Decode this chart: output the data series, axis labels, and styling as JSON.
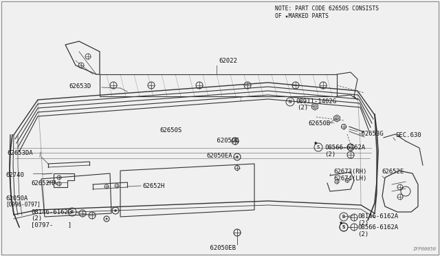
{
  "bg_color": "#f0f0f0",
  "line_color": "#333333",
  "text_color": "#111111",
  "note_line1": "NOTE: PART CODE 62650S CONSISTS",
  "note_line2": "OF ★MARKED PARTS",
  "watermark": "IFP00050",
  "fig_width": 6.4,
  "fig_height": 3.72,
  "dpi": 100
}
